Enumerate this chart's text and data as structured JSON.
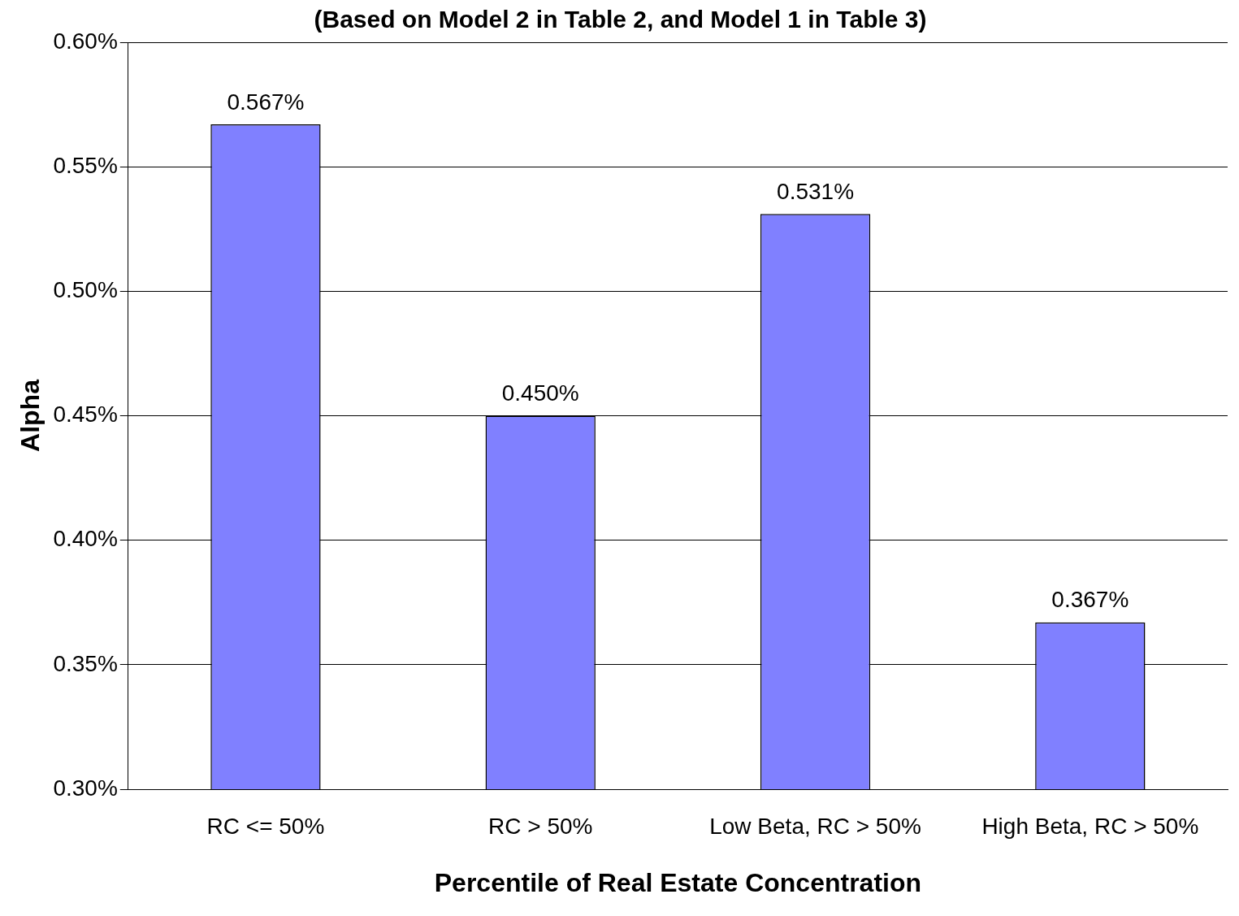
{
  "chart_data": {
    "type": "bar",
    "title": "(Based on Model 2 in Table 2, and Model 1 in Table 3)",
    "xlabel": "Percentile of Real Estate Concentration",
    "ylabel": "Alpha",
    "categories": [
      "RC <= 50%",
      "RC > 50%",
      "Low Beta, RC > 50%",
      "High Beta, RC > 50%"
    ],
    "values": [
      0.567,
      0.45,
      0.531,
      0.367
    ],
    "color": "#8080ff",
    "data_labels": true,
    "value_labels": [
      "0.567%",
      "0.450%",
      "0.531%",
      "0.367%"
    ],
    "ylim": [
      0.3,
      0.6
    ],
    "yticks": [
      {
        "value": 0.3,
        "label": "0.30%"
      },
      {
        "value": 0.35,
        "label": "0.35%"
      },
      {
        "value": 0.4,
        "label": "0.40%"
      },
      {
        "value": 0.45,
        "label": "0.45%"
      },
      {
        "value": 0.5,
        "label": "0.50%"
      },
      {
        "value": 0.55,
        "label": "0.55%"
      },
      {
        "value": 0.6,
        "label": "0.60%"
      }
    ],
    "grid": "y",
    "legend": false
  }
}
